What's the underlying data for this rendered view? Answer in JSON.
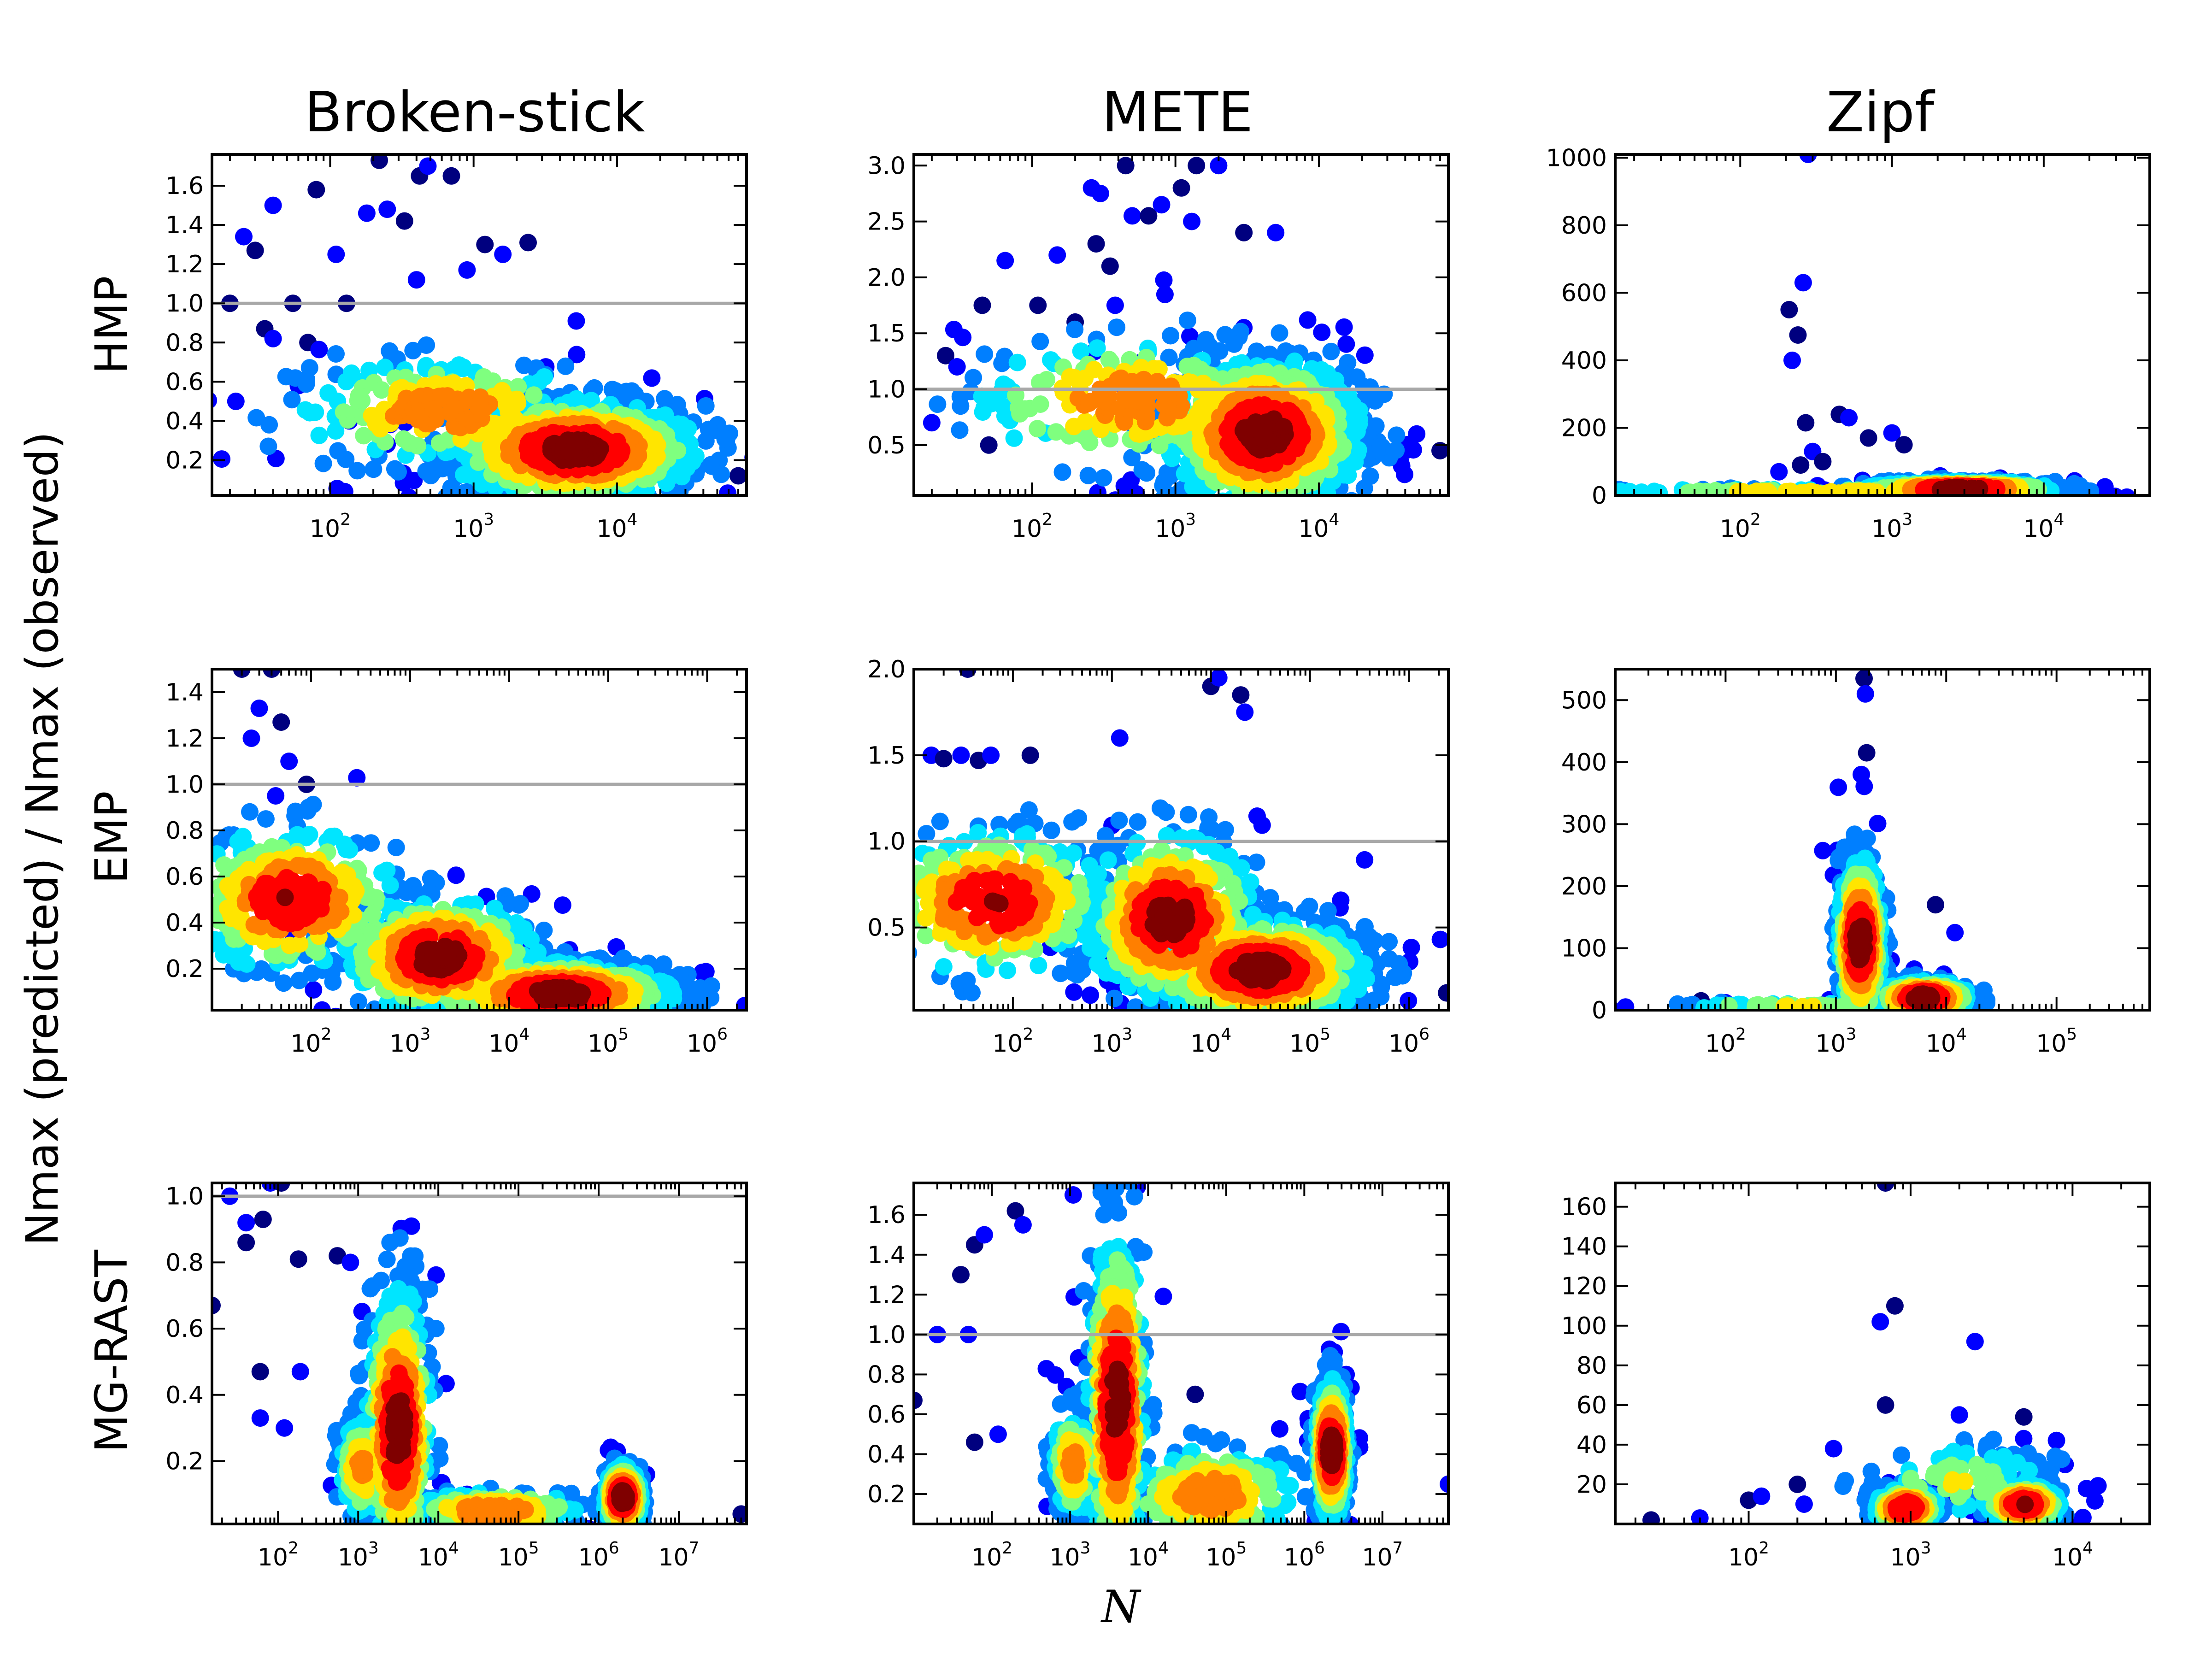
{
  "figure": {
    "column_titles": [
      "Broken-stick",
      "METE",
      "Zipf"
    ],
    "row_labels": [
      "HMP",
      "EMP",
      "MG-RAST"
    ],
    "ylabel": "Nmax (predicted) / Nmax (observed)",
    "xlabel": "N"
  },
  "colors": {
    "reference_line": "#a8a8a8",
    "density_scale": [
      "#00007f",
      "#0000ff",
      "#007fff",
      "#00e5ff",
      "#7fff7f",
      "#ffe500",
      "#ff7f00",
      "#ff0000",
      "#7f0000"
    ]
  },
  "chart_data": [
    {
      "type": "scatter",
      "model": "Broken-stick",
      "dataset": "HMP",
      "xscale": "log",
      "xlim": [
        15,
        80000
      ],
      "ylim": [
        0.02,
        1.76
      ],
      "x_ticks": [
        "10^2",
        "10^3",
        "10^4"
      ],
      "y_ticks": [
        "0.2",
        "0.4",
        "0.6",
        "0.8",
        "1.0",
        "1.2",
        "1.4",
        "1.6"
      ],
      "reference_line_y": 1.0,
      "outliers": [
        [
          20,
          1.0
        ],
        [
          25,
          1.34
        ],
        [
          30,
          1.27
        ],
        [
          40,
          1.5
        ],
        [
          35,
          0.87
        ],
        [
          40,
          0.82
        ],
        [
          55,
          1.0
        ],
        [
          60,
          0.58
        ],
        [
          80,
          1.58
        ],
        [
          110,
          1.25
        ],
        [
          130,
          1.0
        ],
        [
          180,
          1.46
        ],
        [
          220,
          1.73
        ],
        [
          250,
          1.48
        ],
        [
          330,
          1.42
        ],
        [
          400,
          1.12
        ],
        [
          420,
          1.65
        ],
        [
          480,
          1.7
        ],
        [
          700,
          1.65
        ],
        [
          900,
          1.17
        ],
        [
          1200,
          1.3
        ],
        [
          1600,
          1.25
        ],
        [
          2400,
          1.31
        ],
        [
          5200,
          0.91
        ],
        [
          70000,
          0.12
        ],
        [
          22,
          0.5
        ],
        [
          70,
          0.8
        ]
      ],
      "clusters": [
        {
          "log10x": 3.7,
          "y": 0.25,
          "spread_log10x": 0.45,
          "spread_y": 0.13,
          "n": 900
        },
        {
          "log10x": 2.8,
          "y": 0.45,
          "spread_log10x": 0.55,
          "spread_y": 0.14,
          "n": 250
        }
      ]
    },
    {
      "type": "scatter",
      "model": "METE",
      "dataset": "HMP",
      "xscale": "log",
      "xlim": [
        15,
        80000
      ],
      "ylim": [
        0.05,
        3.1
      ],
      "x_ticks": [
        "10^2",
        "10^3",
        "10^4"
      ],
      "y_ticks": [
        "0.5",
        "1.0",
        "1.5",
        "2.0",
        "2.5",
        "3.0"
      ],
      "reference_line_y": 1.0,
      "outliers": [
        [
          25,
          1.3
        ],
        [
          30,
          1.2
        ],
        [
          45,
          1.75
        ],
        [
          65,
          2.15
        ],
        [
          110,
          1.75
        ],
        [
          150,
          2.2
        ],
        [
          200,
          1.6
        ],
        [
          260,
          2.8
        ],
        [
          280,
          2.3
        ],
        [
          300,
          2.75
        ],
        [
          350,
          2.1
        ],
        [
          380,
          1.75
        ],
        [
          450,
          3.0
        ],
        [
          500,
          2.55
        ],
        [
          650,
          2.55
        ],
        [
          800,
          2.65
        ],
        [
          1100,
          2.8
        ],
        [
          1300,
          2.5
        ],
        [
          1400,
          3.0
        ],
        [
          2000,
          3.0
        ],
        [
          3000,
          2.4
        ],
        [
          5000,
          2.4
        ],
        [
          70000,
          0.45
        ],
        [
          20,
          0.7
        ],
        [
          50,
          0.5
        ]
      ],
      "clusters": [
        {
          "log10x": 3.62,
          "y": 0.6,
          "spread_log10x": 0.35,
          "spread_y": 0.35,
          "n": 1000
        },
        {
          "log10x": 2.7,
          "y": 0.9,
          "spread_log10x": 0.6,
          "spread_y": 0.3,
          "n": 250
        }
      ]
    },
    {
      "type": "scatter",
      "model": "Zipf",
      "dataset": "HMP",
      "xscale": "log",
      "xlim": [
        15,
        50000
      ],
      "ylim": [
        0,
        1010
      ],
      "x_ticks": [
        "10^2",
        "10^3",
        "10^4"
      ],
      "y_ticks": [
        "0",
        "200",
        "400",
        "600",
        "800",
        "1000"
      ],
      "outliers": [
        [
          210,
          550
        ],
        [
          220,
          400
        ],
        [
          240,
          475
        ],
        [
          260,
          630
        ],
        [
          270,
          215
        ],
        [
          280,
          1010
        ],
        [
          250,
          90
        ],
        [
          300,
          130
        ],
        [
          450,
          240
        ],
        [
          520,
          230
        ],
        [
          700,
          170
        ],
        [
          1000,
          185
        ],
        [
          1200,
          150
        ],
        [
          180,
          70
        ],
        [
          350,
          100
        ]
      ],
      "clusters": [
        {
          "log10x": 3.45,
          "y": 18,
          "spread_log10x": 0.32,
          "spread_y": 12,
          "n": 800
        },
        {
          "log10x": 2.5,
          "y": 10,
          "spread_log10x": 0.8,
          "spread_y": 5,
          "n": 150
        }
      ]
    },
    {
      "type": "scatter",
      "model": "Broken-stick",
      "dataset": "EMP",
      "xscale": "log",
      "xlim": [
        10,
        2500000
      ],
      "ylim": [
        0.02,
        1.5
      ],
      "x_ticks": [
        "10^2",
        "10^3",
        "10^4",
        "10^5",
        "10^6"
      ],
      "y_ticks": [
        "0.2",
        "0.4",
        "0.6",
        "0.8",
        "1.0",
        "1.2",
        "1.4"
      ],
      "reference_line_y": 1.0,
      "outliers": [
        [
          20,
          1.5
        ],
        [
          30,
          1.33
        ],
        [
          40,
          1.5
        ],
        [
          25,
          1.2
        ],
        [
          50,
          1.27
        ],
        [
          60,
          1.1
        ],
        [
          90,
          1.0
        ],
        [
          2400000,
          0.04
        ]
      ],
      "clusters": [
        {
          "log10x": 4.5,
          "y": 0.09,
          "spread_log10x": 0.6,
          "spread_y": 0.07,
          "n": 900
        },
        {
          "log10x": 3.3,
          "y": 0.25,
          "spread_log10x": 0.5,
          "spread_y": 0.13,
          "n": 500
        },
        {
          "log10x": 1.8,
          "y": 0.5,
          "spread_log10x": 0.55,
          "spread_y": 0.16,
          "n": 350
        }
      ]
    },
    {
      "type": "scatter",
      "model": "METE",
      "dataset": "EMP",
      "xscale": "log",
      "xlim": [
        10,
        2500000
      ],
      "ylim": [
        0.02,
        2.0
      ],
      "x_ticks": [
        "10^2",
        "10^3",
        "10^4",
        "10^5",
        "10^6"
      ],
      "y_ticks": [
        "0.5",
        "1.0",
        "1.5",
        "2.0"
      ],
      "reference_line_y": 1.0,
      "outliers": [
        [
          35,
          2.0
        ],
        [
          15,
          1.5
        ],
        [
          20,
          1.48
        ],
        [
          30,
          1.5
        ],
        [
          45,
          1.47
        ],
        [
          60,
          1.5
        ],
        [
          150,
          1.5
        ],
        [
          1200,
          1.6
        ],
        [
          10000,
          1.9
        ],
        [
          12000,
          1.95
        ],
        [
          20000,
          1.85
        ],
        [
          22000,
          1.75
        ],
        [
          2400000,
          0.12
        ]
      ],
      "clusters": [
        {
          "log10x": 4.5,
          "y": 0.25,
          "spread_log10x": 0.55,
          "spread_y": 0.15,
          "n": 1000
        },
        {
          "log10x": 3.6,
          "y": 0.55,
          "spread_log10x": 0.45,
          "spread_y": 0.25,
          "n": 500
        },
        {
          "log10x": 1.8,
          "y": 0.65,
          "spread_log10x": 0.6,
          "spread_y": 0.22,
          "n": 350
        }
      ]
    },
    {
      "type": "scatter",
      "model": "Zipf",
      "dataset": "EMP",
      "xscale": "log",
      "xlim": [
        10,
        700000
      ],
      "ylim": [
        0,
        550
      ],
      "x_ticks": [
        "10^2",
        "10^3",
        "10^4",
        "10^5"
      ],
      "y_ticks": [
        "0",
        "100",
        "200",
        "300",
        "400",
        "500"
      ],
      "outliers": [
        [
          1800,
          535
        ],
        [
          1850,
          510
        ],
        [
          1900,
          415
        ],
        [
          1700,
          380
        ],
        [
          1500,
          250
        ],
        [
          1300,
          230
        ],
        [
          8000,
          170
        ],
        [
          12000,
          125
        ],
        [
          60,
          15
        ],
        [
          100,
          12
        ]
      ],
      "clusters": [
        {
          "log10x": 3.22,
          "y": 110,
          "spread_log10x": 0.1,
          "spread_y": 70,
          "n": 700
        },
        {
          "log10x": 3.8,
          "y": 20,
          "spread_log10x": 0.22,
          "spread_y": 14,
          "n": 500
        },
        {
          "log10x": 2.6,
          "y": 6,
          "spread_log10x": 0.6,
          "spread_y": 3,
          "n": 100
        }
      ]
    },
    {
      "type": "scatter",
      "model": "Broken-stick",
      "dataset": "MG-RAST",
      "xscale": "log",
      "xlim": [
        15,
        70000000
      ],
      "ylim": [
        0.01,
        1.04
      ],
      "x_ticks": [
        "10^2",
        "10^3",
        "10^4",
        "10^5",
        "10^6",
        "10^7"
      ],
      "y_ticks": [
        "0.2",
        "0.4",
        "0.6",
        "0.8",
        "1.0"
      ],
      "reference_line_y": 1.0,
      "outliers": [
        [
          15,
          0.67
        ],
        [
          25,
          1.0
        ],
        [
          40,
          0.86
        ],
        [
          40,
          0.92
        ],
        [
          60,
          0.47
        ],
        [
          60,
          0.33
        ],
        [
          65,
          0.93
        ],
        [
          80,
          1.04
        ],
        [
          110,
          1.04
        ],
        [
          120,
          0.3
        ],
        [
          180,
          0.81
        ],
        [
          190,
          0.47
        ],
        [
          550,
          0.82
        ],
        [
          800,
          0.8
        ],
        [
          2500,
          0.86
        ],
        [
          6000,
          0.45
        ],
        [
          60000000,
          0.04
        ]
      ],
      "clusters": [
        {
          "log10x": 3.5,
          "y": 0.3,
          "spread_log10x": 0.2,
          "spread_y": 0.22,
          "n": 500
        },
        {
          "log10x": 3.05,
          "y": 0.18,
          "spread_log10x": 0.15,
          "spread_y": 0.08,
          "n": 200
        },
        {
          "log10x": 6.3,
          "y": 0.09,
          "spread_log10x": 0.12,
          "spread_y": 0.05,
          "n": 500
        },
        {
          "log10x": 4.7,
          "y": 0.05,
          "spread_log10x": 0.6,
          "spread_y": 0.03,
          "n": 250
        }
      ]
    },
    {
      "type": "scatter",
      "model": "METE",
      "dataset": "MG-RAST",
      "xscale": "log",
      "xlim": [
        10,
        70000000
      ],
      "ylim": [
        0.05,
        1.76
      ],
      "x_ticks": [
        "10^2",
        "10^3",
        "10^4",
        "10^5",
        "10^6",
        "10^7"
      ],
      "y_ticks": [
        "0.2",
        "0.4",
        "0.6",
        "0.8",
        "1.0",
        "1.2",
        "1.4",
        "1.6"
      ],
      "reference_line_y": 1.0,
      "outliers": [
        [
          10,
          0.67
        ],
        [
          20,
          1.0
        ],
        [
          40,
          1.3
        ],
        [
          50,
          1.0
        ],
        [
          60,
          1.45
        ],
        [
          80,
          1.5
        ],
        [
          60,
          0.46
        ],
        [
          120,
          0.5
        ],
        [
          200,
          1.62
        ],
        [
          250,
          1.55
        ],
        [
          500,
          1.8
        ],
        [
          1100,
          1.7
        ],
        [
          40000,
          0.7
        ],
        [
          70000000,
          0.25
        ]
      ],
      "clusters": [
        {
          "log10x": 6.35,
          "y": 0.42,
          "spread_log10x": 0.1,
          "spread_y": 0.18,
          "n": 600
        },
        {
          "log10x": 3.6,
          "y": 0.65,
          "spread_log10x": 0.18,
          "spread_y": 0.45,
          "n": 500
        },
        {
          "log10x": 3.05,
          "y": 0.35,
          "spread_log10x": 0.15,
          "spread_y": 0.15,
          "n": 200
        },
        {
          "log10x": 4.8,
          "y": 0.2,
          "spread_log10x": 0.6,
          "spread_y": 0.12,
          "n": 250
        }
      ]
    },
    {
      "type": "scatter",
      "model": "Zipf",
      "dataset": "MG-RAST",
      "xscale": "log",
      "xlim": [
        15,
        30000
      ],
      "ylim": [
        0,
        172
      ],
      "x_ticks": [
        "10^2",
        "10^3",
        "10^4"
      ],
      "y_ticks": [
        "20",
        "40",
        "60",
        "80",
        "100",
        "120",
        "140",
        "160"
      ],
      "outliers": [
        [
          700,
          172
        ],
        [
          650,
          102
        ],
        [
          800,
          110
        ],
        [
          2500,
          92
        ],
        [
          700,
          60
        ],
        [
          2000,
          55
        ],
        [
          5000,
          54
        ],
        [
          9000,
          30
        ],
        [
          200,
          20
        ],
        [
          220,
          10
        ],
        [
          100,
          12
        ],
        [
          120,
          14
        ],
        [
          25,
          2
        ],
        [
          50,
          3
        ]
      ],
      "clusters": [
        {
          "log10x": 2.97,
          "y": 8,
          "spread_log10x": 0.1,
          "spread_y": 5,
          "n": 350
        },
        {
          "log10x": 3.7,
          "y": 10,
          "spread_log10x": 0.12,
          "spread_y": 5,
          "n": 350
        },
        {
          "log10x": 3.3,
          "y": 22,
          "spread_log10x": 0.3,
          "spread_y": 10,
          "n": 100
        }
      ]
    }
  ]
}
